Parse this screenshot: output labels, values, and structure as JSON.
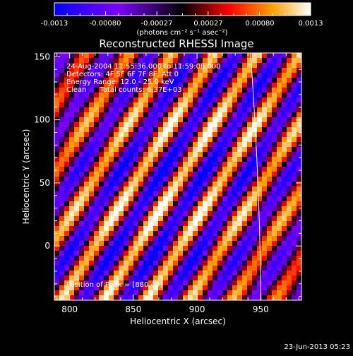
{
  "colorbar": {
    "ticks": [
      "-0.0013",
      "-0.00080",
      "-0.00027",
      "0.00027",
      "0.00080",
      "0.0013"
    ],
    "units": "(photons cm⁻² s⁻¹ asec⁻²)"
  },
  "title": "Reconstructed RHESSI Image",
  "info": {
    "line1": "24-Aug-2004 11:55:36.000 to 11:59:08.000",
    "line2": "Detectors: 4F 5F 6F 7F 8F, Att 0",
    "line3": "Energy Range: 12.0 - 25.0 keV",
    "line4": "Clean      Total counts: 6.37E+03"
  },
  "peak": "Position of Peak = [880,43]",
  "footer_timestamp": "23-Jun-2013 05:23",
  "colors": {
    "background": "#000000",
    "axis": "#ffffff",
    "colormap": [
      "#0000ff",
      "#7f00ff",
      "#000000",
      "#ff0000",
      "#ff9f00",
      "#ffffff"
    ]
  },
  "chart_data": {
    "type": "heatmap",
    "title": "Reconstructed RHESSI Image",
    "xlabel": "Heliocentric X (arcsec)",
    "ylabel": "Heliocentric Y (arcsec)",
    "xlim": [
      788,
      982
    ],
    "ylim": [
      -43,
      153
    ],
    "x_ticks": [
      800,
      850,
      900,
      950
    ],
    "y_ticks": [
      0,
      50,
      100,
      150
    ],
    "colorbar_range": [
      -0.0013,
      0.0013
    ],
    "peak": {
      "x": 880,
      "y": 43
    },
    "limb_curve": {
      "x_top": 942,
      "x_bottom": 950
    },
    "grid": false
  }
}
